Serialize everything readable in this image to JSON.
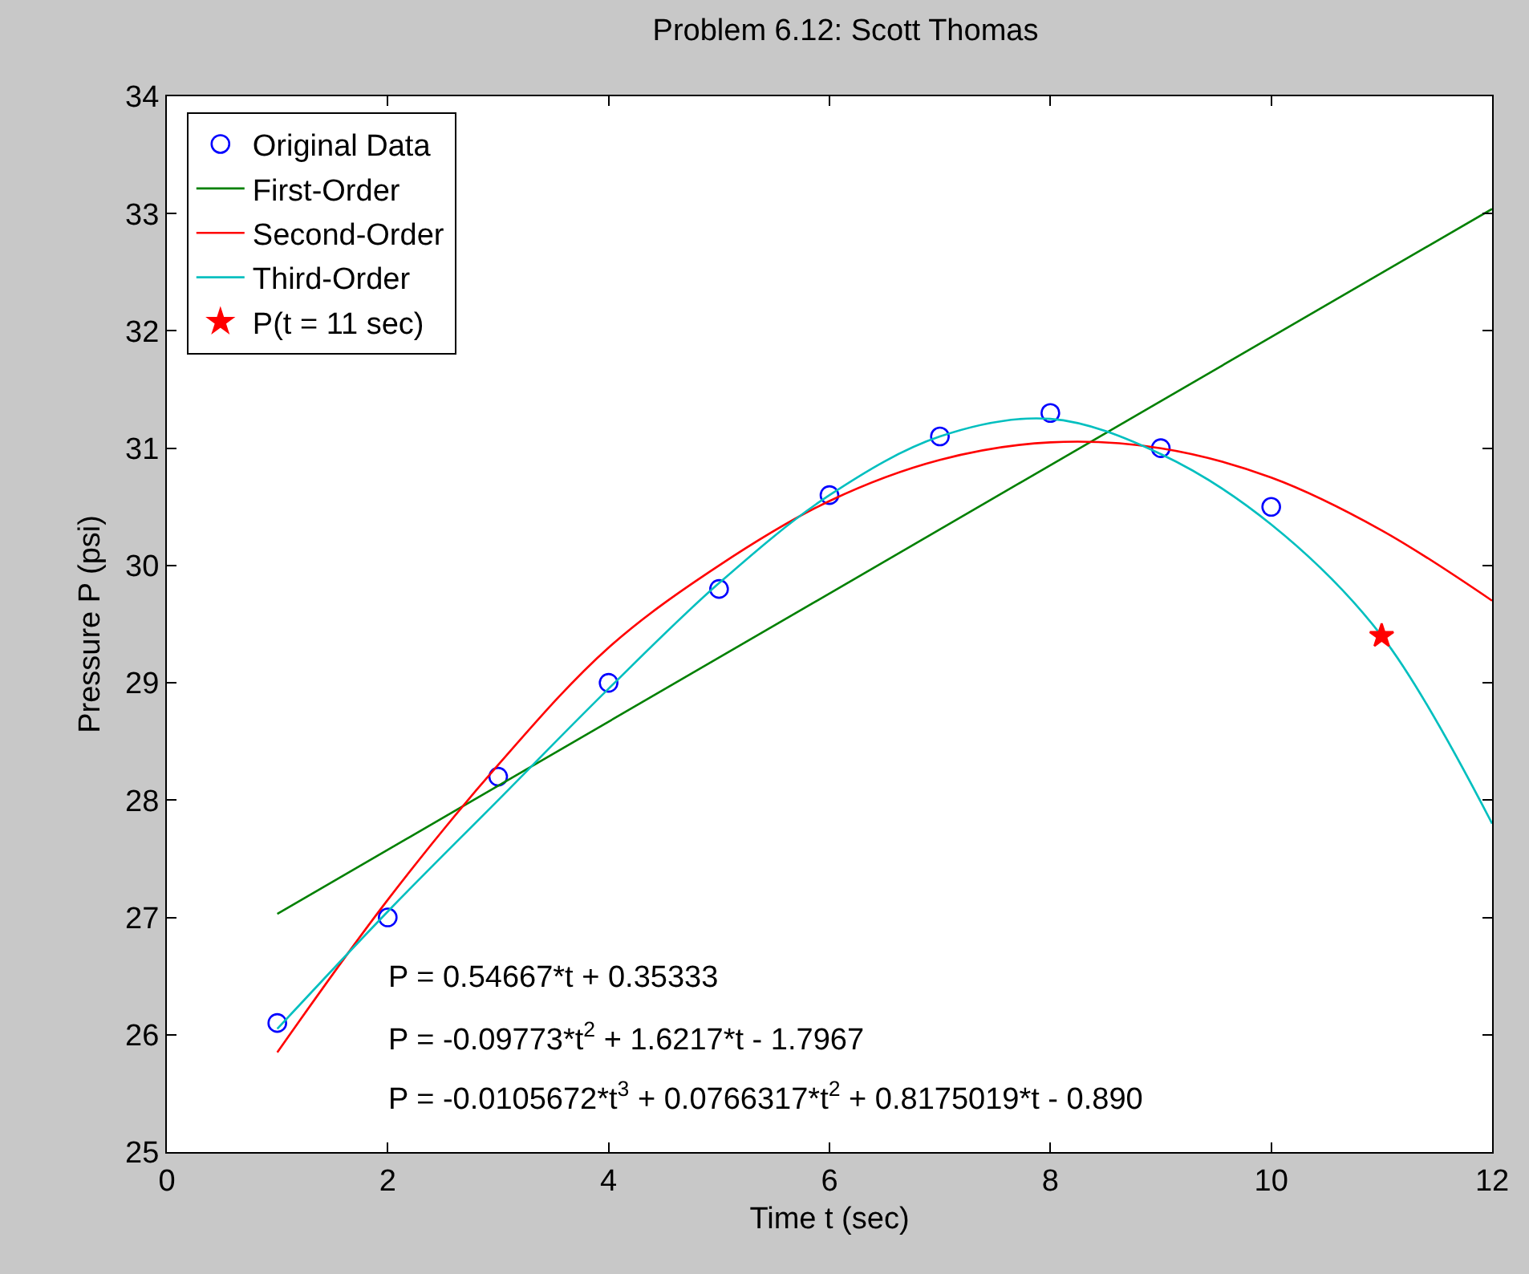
{
  "chart_data": {
    "type": "line",
    "title": "Problem 6.12: Scott Thomas",
    "xlabel": "Time t (sec)",
    "ylabel": "Pressure P (psi)",
    "xlim": [
      0,
      12
    ],
    "xticks": [
      0,
      2,
      4,
      6,
      8,
      10,
      12
    ],
    "ylim": [
      25,
      34
    ],
    "yticks": [
      25,
      26,
      27,
      28,
      29,
      30,
      31,
      32,
      33,
      34
    ],
    "grid": false,
    "legend": "top left",
    "series": [
      {
        "name": "Original Data",
        "type": "scatter",
        "marker": "circle",
        "color": "#0000ff",
        "x": [
          1,
          2,
          3,
          4,
          5,
          6,
          7,
          8,
          9,
          10
        ],
        "values": [
          26.1,
          27.0,
          28.2,
          29.0,
          29.8,
          30.6,
          31.1,
          31.3,
          31.0,
          30.5
        ]
      },
      {
        "name": "First-Order",
        "marker": "none",
        "color": "#008000",
        "x": [
          1,
          12
        ],
        "values": [
          27.03,
          33.04
        ]
      },
      {
        "name": "Second-Order",
        "marker": "none",
        "color": "#ff0000",
        "x": [
          1,
          2,
          3,
          4,
          5,
          6,
          7,
          8,
          9,
          10,
          11,
          12
        ],
        "values": [
          25.85,
          27.15,
          28.3,
          29.3,
          30.0,
          30.55,
          30.9,
          31.05,
          31.0,
          30.75,
          30.3,
          29.7
        ]
      },
      {
        "name": "Third-Order",
        "marker": "none",
        "color": "#00bfbf",
        "x": [
          1,
          2,
          3,
          4,
          5,
          6,
          7,
          8,
          9,
          10,
          11,
          12
        ],
        "values": [
          26.05,
          27.05,
          28.0,
          28.95,
          29.85,
          30.6,
          31.1,
          31.25,
          30.95,
          30.35,
          29.4,
          27.8
        ]
      },
      {
        "name": "P(t = 11 sec)",
        "type": "scatter",
        "marker": "star",
        "color": "#ff0000",
        "x": [
          11
        ],
        "values": [
          29.4
        ]
      }
    ],
    "annotations": [
      "P = 0.54667*t + 0.35333",
      "P = -0.09773*t$^{2}$ + 1.6217*t - 1.7967",
      "P = -0.0105672*t$^{3}$ + 0.0766317*t$^{2}$ + 0.8175019*t - 0.890"
    ]
  }
}
